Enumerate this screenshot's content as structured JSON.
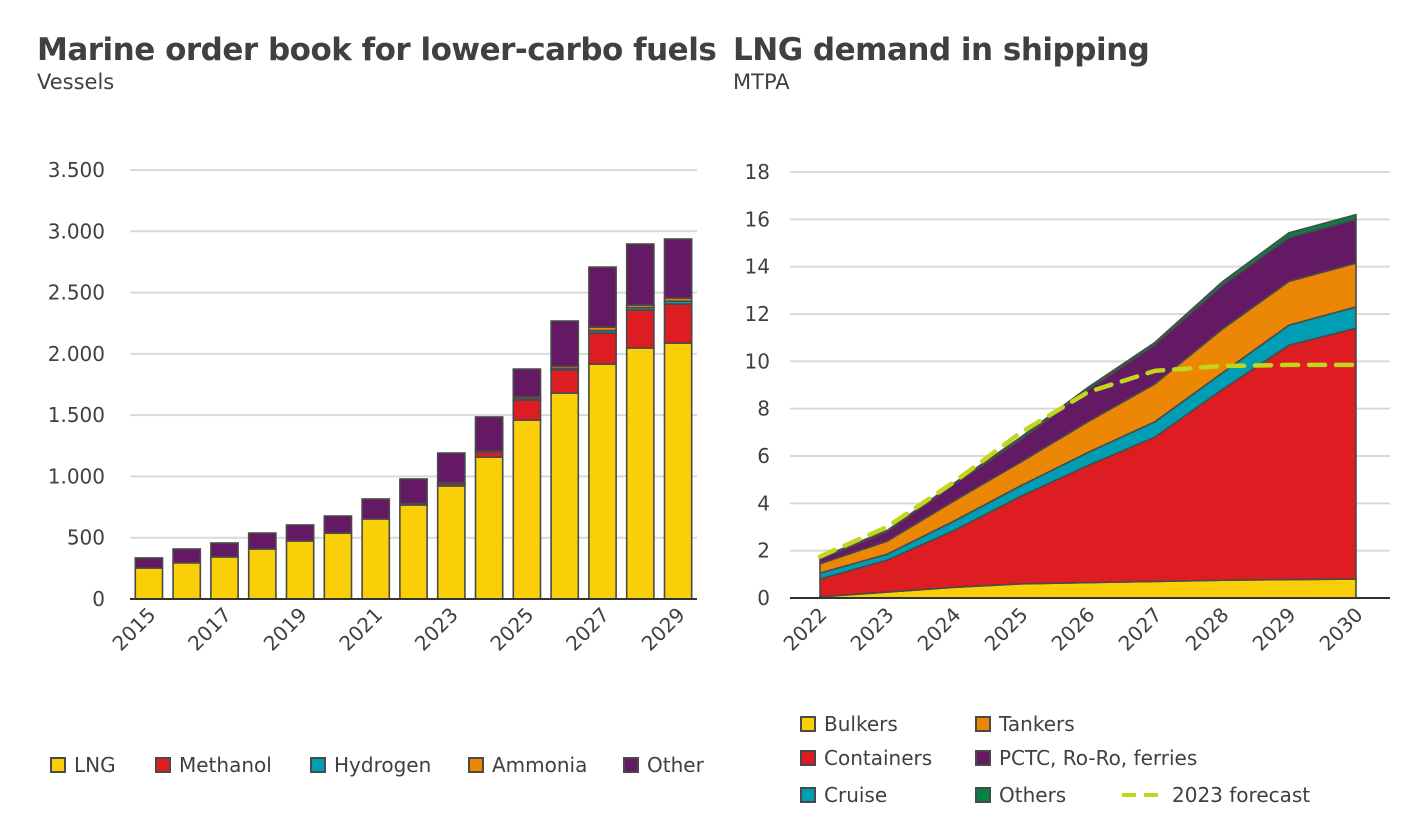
{
  "chart_data": [
    {
      "type": "bar",
      "stacked": true,
      "title": "Marine order book for lower-carbo fuels",
      "subtitle": "Vessels",
      "xlabel": "",
      "ylabel": "Vessels",
      "ylim": [
        0,
        3500
      ],
      "yticks": [
        "0",
        "500",
        "1.000",
        "1.500",
        "2.000",
        "2.500",
        "3.000",
        "3.500"
      ],
      "ytick_values": [
        0,
        500,
        1000,
        1500,
        2000,
        2500,
        3000,
        3500
      ],
      "grid": true,
      "legend_position": "bottom",
      "categories": [
        "2015",
        "2016",
        "2017",
        "2018",
        "2019",
        "2020",
        "2021",
        "2022",
        "2023",
        "2024",
        "2025",
        "2026",
        "2027",
        "2028",
        "2029"
      ],
      "xtick_labels": [
        "2015",
        "2017",
        "2019",
        "2021",
        "2023",
        "2025",
        "2027",
        "2029"
      ],
      "series": [
        {
          "name": "LNG",
          "color": "#fbcf08",
          "values": [
            253,
            295,
            343,
            408,
            473,
            538,
            653,
            767,
            922,
            1158,
            1460,
            1680,
            1917,
            2048,
            2088
          ]
        },
        {
          "name": "Methanol",
          "color": "#dd1d21",
          "values": [
            0,
            0,
            0,
            0,
            0,
            0,
            0,
            12,
            20,
            41,
            163,
            188,
            253,
            309,
            318
          ]
        },
        {
          "name": "Hydrogen",
          "color": "#009eb4",
          "values": [
            0,
            0,
            0,
            0,
            0,
            0,
            0,
            0,
            0,
            0,
            10,
            12,
            20,
            20,
            24
          ]
        },
        {
          "name": "Ammonia",
          "color": "#eb8705",
          "values": [
            0,
            0,
            0,
            0,
            0,
            0,
            0,
            0,
            5,
            8,
            15,
            18,
            28,
            21,
            25
          ]
        },
        {
          "name": "Other",
          "color": "#641964",
          "values": [
            82,
            113,
            114,
            130,
            131,
            139,
            163,
            200,
            244,
            278,
            228,
            370,
            490,
            498,
            482
          ]
        }
      ]
    },
    {
      "type": "area",
      "stacked": true,
      "title": "LNG demand in shipping",
      "subtitle": "MTPA",
      "xlabel": "",
      "ylabel": "MTPA",
      "ylim": [
        0,
        18
      ],
      "yticks": [
        "0",
        "2",
        "4",
        "6",
        "8",
        "10",
        "12",
        "14",
        "16",
        "18"
      ],
      "ytick_values": [
        0,
        2,
        4,
        6,
        8,
        10,
        12,
        14,
        16,
        18
      ],
      "grid": true,
      "legend_position": "bottom",
      "x": [
        "2022",
        "2023",
        "2024",
        "2025",
        "2026",
        "2027",
        "2028",
        "2029",
        "2030"
      ],
      "series": [
        {
          "name": "Bulkers",
          "color": "#fbcf08",
          "values": [
            0.05,
            0.25,
            0.45,
            0.6,
            0.65,
            0.7,
            0.75,
            0.78,
            0.8
          ]
        },
        {
          "name": "Containers",
          "color": "#dd1d21",
          "values": [
            0.75,
            1.35,
            2.4,
            3.7,
            4.95,
            6.1,
            8.05,
            9.9,
            10.6
          ]
        },
        {
          "name": "Cruise",
          "color": "#009eb4",
          "values": [
            0.25,
            0.25,
            0.4,
            0.45,
            0.55,
            0.65,
            0.7,
            0.85,
            0.9
          ]
        },
        {
          "name": "Tankers",
          "color": "#eb8705",
          "values": [
            0.4,
            0.55,
            0.85,
            1.0,
            1.3,
            1.6,
            1.85,
            1.85,
            1.85
          ]
        },
        {
          "name": "PCTC, Ro-Ro, ferries",
          "color": "#641964",
          "values": [
            0.2,
            0.4,
            0.7,
            0.95,
            1.35,
            1.65,
            1.85,
            1.85,
            1.85
          ]
        },
        {
          "name": "Others",
          "color": "#008443",
          "values": [
            0.05,
            0.05,
            0.05,
            0.1,
            0.1,
            0.1,
            0.15,
            0.2,
            0.2
          ]
        }
      ],
      "lines": [
        {
          "name": "2023 forecast",
          "color": "#c2d61c",
          "style": "dashed",
          "values": [
            1.75,
            3.0,
            4.9,
            7.0,
            8.7,
            9.6,
            9.8,
            9.85,
            9.85
          ]
        }
      ]
    }
  ],
  "legends": {
    "left": [
      "LNG",
      "Methanol",
      "Hydrogen",
      "Ammonia",
      "Other"
    ],
    "right": [
      "Bulkers",
      "Tankers",
      "Containers",
      "PCTC, Ro-Ro, ferries",
      "Cruise",
      "Others",
      "2023 forecast"
    ]
  }
}
